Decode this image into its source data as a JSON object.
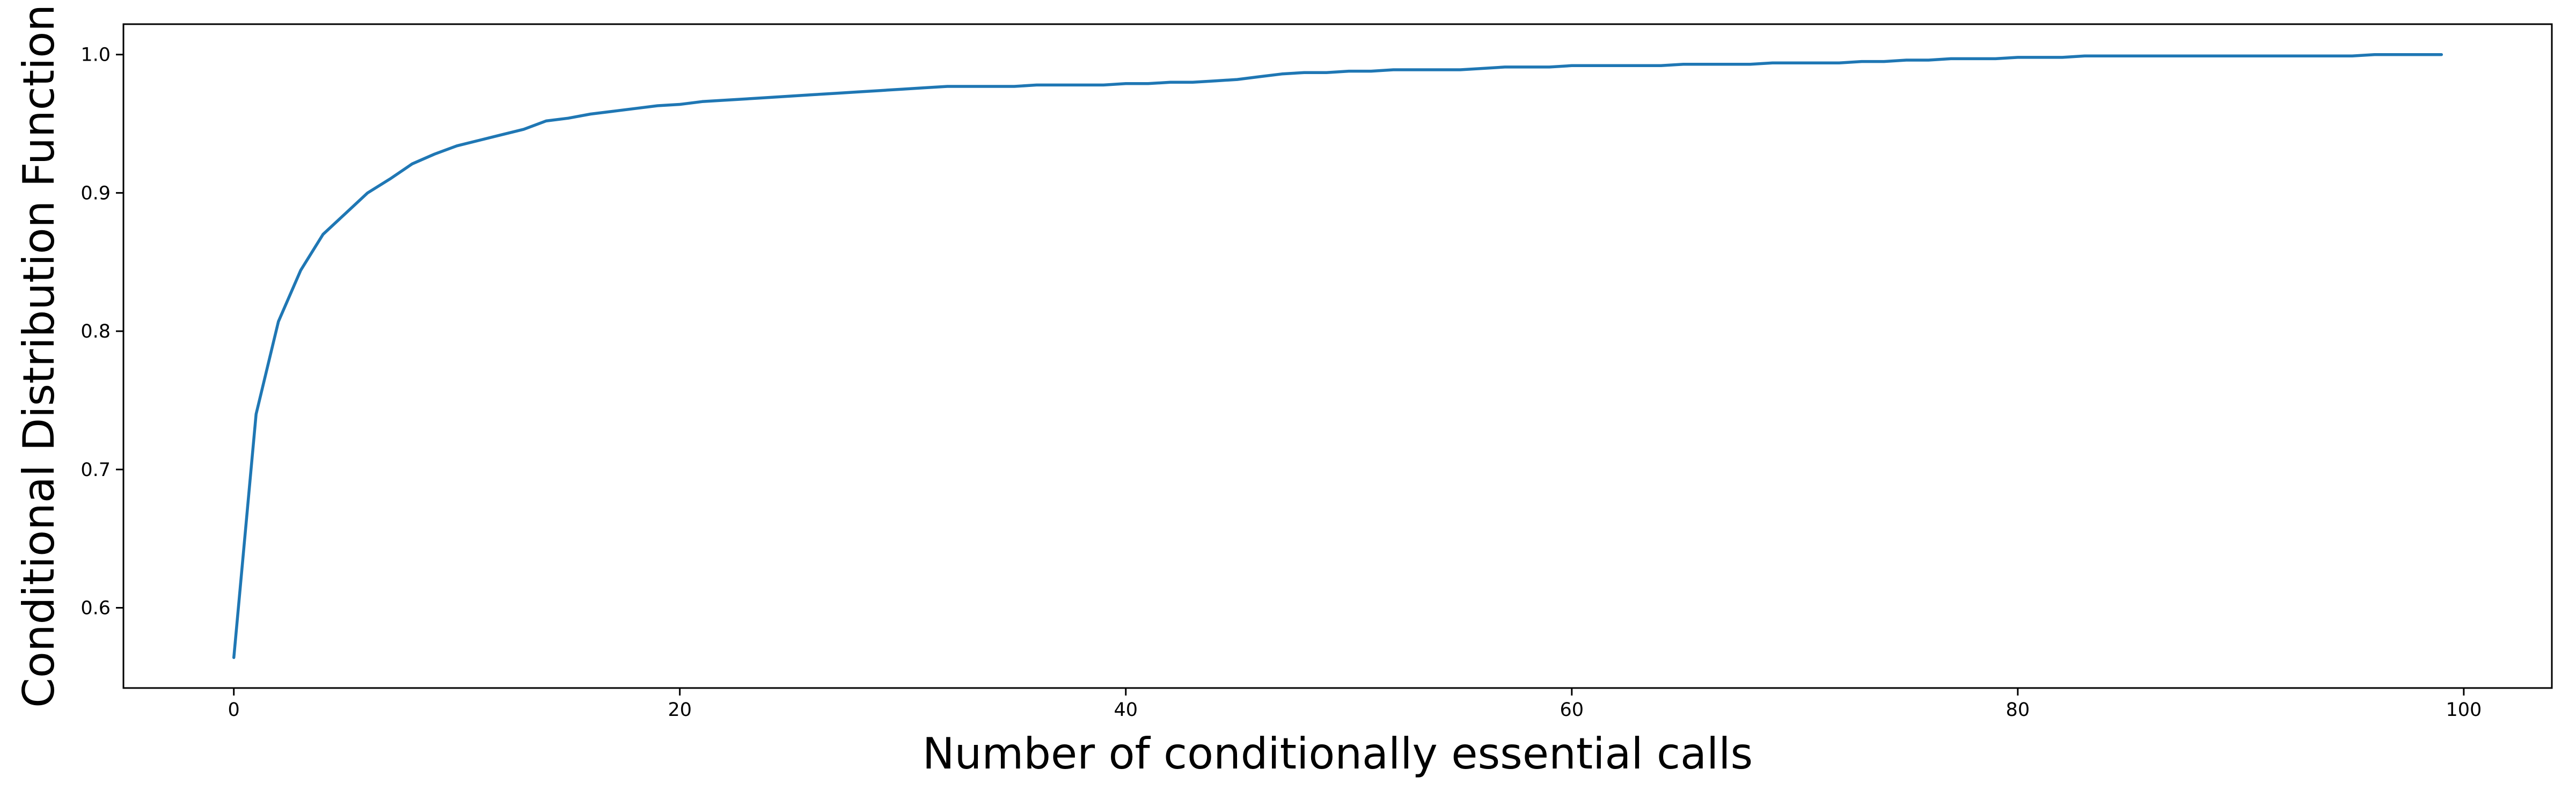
{
  "chart_data": {
    "type": "line",
    "title": "",
    "xlabel": "Number of conditionally essential calls",
    "ylabel": "Conditional Distribution Function",
    "xlim": [
      -4.95,
      103.95
    ],
    "ylim": [
      0.542,
      1.022
    ],
    "x_ticks": [
      0,
      20,
      40,
      60,
      80,
      100
    ],
    "y_ticks": [
      0.6,
      0.7,
      0.8,
      0.9,
      1.0
    ],
    "x_tick_labels": [
      "0",
      "20",
      "40",
      "60",
      "80",
      "100"
    ],
    "y_tick_labels": [
      "0.6",
      "0.7",
      "0.8",
      "0.9",
      "1.0"
    ],
    "grid": false,
    "legend": "none",
    "series": [
      {
        "color": "#1f77b4",
        "x": [
          0,
          1,
          2,
          3,
          4,
          5,
          6,
          7,
          8,
          9,
          10,
          11,
          12,
          13,
          14,
          15,
          16,
          17,
          18,
          19,
          20,
          21,
          22,
          23,
          24,
          25,
          26,
          27,
          28,
          29,
          30,
          31,
          32,
          33,
          34,
          35,
          36,
          37,
          38,
          39,
          40,
          41,
          42,
          43,
          44,
          45,
          46,
          47,
          48,
          49,
          50,
          51,
          52,
          53,
          54,
          55,
          56,
          57,
          58,
          59,
          60,
          61,
          62,
          63,
          64,
          65,
          66,
          67,
          68,
          69,
          70,
          71,
          72,
          73,
          74,
          75,
          76,
          77,
          78,
          79,
          80,
          81,
          82,
          83,
          84,
          85,
          86,
          87,
          88,
          89,
          90,
          91,
          92,
          93,
          94,
          95,
          96,
          97,
          98,
          99
        ],
        "y": [
          0.564,
          0.74,
          0.807,
          0.844,
          0.87,
          0.885,
          0.9,
          0.91,
          0.921,
          0.928,
          0.934,
          0.938,
          0.942,
          0.946,
          0.952,
          0.954,
          0.957,
          0.959,
          0.961,
          0.963,
          0.964,
          0.966,
          0.967,
          0.968,
          0.969,
          0.97,
          0.971,
          0.972,
          0.973,
          0.974,
          0.975,
          0.976,
          0.977,
          0.977,
          0.977,
          0.977,
          0.978,
          0.978,
          0.978,
          0.978,
          0.979,
          0.979,
          0.98,
          0.98,
          0.981,
          0.982,
          0.984,
          0.986,
          0.987,
          0.987,
          0.988,
          0.988,
          0.989,
          0.989,
          0.989,
          0.989,
          0.99,
          0.991,
          0.991,
          0.991,
          0.992,
          0.992,
          0.992,
          0.992,
          0.992,
          0.993,
          0.993,
          0.993,
          0.993,
          0.994,
          0.994,
          0.994,
          0.994,
          0.995,
          0.995,
          0.996,
          0.996,
          0.997,
          0.997,
          0.997,
          0.998,
          0.998,
          0.998,
          0.999,
          0.999,
          0.999,
          0.999,
          0.999,
          0.999,
          0.999,
          0.999,
          0.999,
          0.999,
          0.999,
          0.999,
          0.999,
          1.0,
          1.0,
          1.0,
          1.0
        ]
      }
    ]
  }
}
